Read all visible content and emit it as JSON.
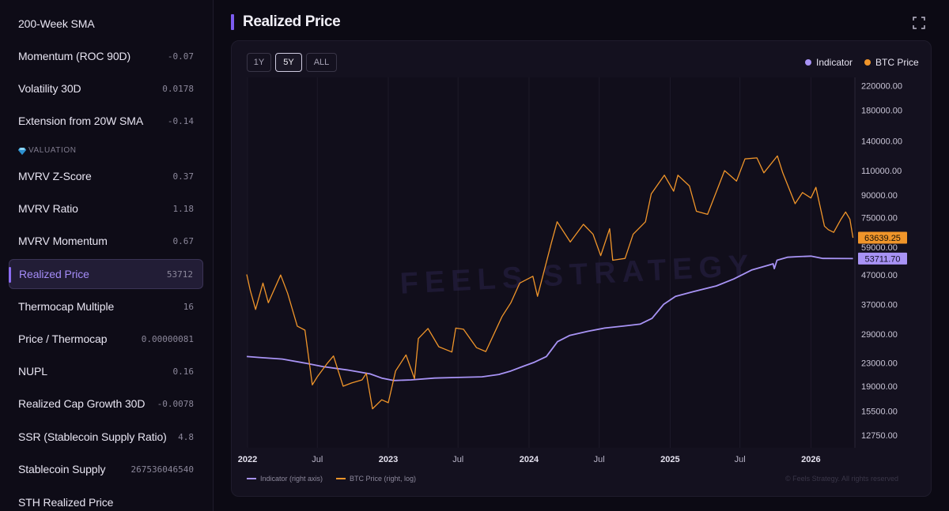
{
  "sidebar": {
    "items": [
      {
        "label": "200-Week SMA",
        "value": ""
      },
      {
        "label": "Momentum (ROC 90D)",
        "value": "-0.07"
      },
      {
        "label": "Volatility 30D",
        "value": "0.0178"
      },
      {
        "label": "Extension from 20W SMA",
        "value": "-0.14"
      },
      {
        "label": "MVRV Z-Score",
        "value": "0.37"
      },
      {
        "label": "MVRV Ratio",
        "value": "1.18"
      },
      {
        "label": "MVRV Momentum",
        "value": "0.67"
      },
      {
        "label": "Realized Price",
        "value": "53712"
      },
      {
        "label": "Thermocap Multiple",
        "value": "16"
      },
      {
        "label": "Price / Thermocap",
        "value": "0.00000081"
      },
      {
        "label": "NUPL",
        "value": "0.16"
      },
      {
        "label": "Realized Cap Growth 30D",
        "value": "-0.0078"
      },
      {
        "label": "SSR (Stablecoin Supply Ratio)",
        "value": "4.8"
      },
      {
        "label": "Stablecoin Supply",
        "value": "267536046540"
      },
      {
        "label": "STH Realized Price",
        "value": ""
      }
    ],
    "section_label": "VALUATION",
    "section_icon": "gem-icon"
  },
  "header": {
    "title": "Realized Price",
    "expand_icon": "expand-icon"
  },
  "range_buttons": {
    "options": [
      "1Y",
      "5Y",
      "ALL"
    ],
    "selected": "5Y"
  },
  "legend": {
    "indicator": "Indicator",
    "btc": "BTC Price"
  },
  "colors": {
    "indicator": "#a893f5",
    "btc": "#f0952a",
    "accent": "#7c5cf0"
  },
  "watermark": "FEELS STRATEGY",
  "copyright": "© Feels Strategy. All rights reserved",
  "chart_data": {
    "type": "line",
    "y_scale": "log",
    "ylim": [
      11500,
      235000
    ],
    "yticks": [
      220000,
      180000,
      140000,
      110000,
      90000,
      75000,
      59000,
      47000,
      37000,
      29000,
      23000,
      19000,
      15500,
      12750
    ],
    "ytick_labels": [
      "220000.00",
      "180000.00",
      "140000.00",
      "110000.00",
      "90000.00",
      "75000.00",
      "59000.00",
      "47000.00",
      "37000.00",
      "29000.00",
      "23000.00",
      "19000.00",
      "15500.00",
      "12750.00"
    ],
    "xlim": [
      "2021-12-30",
      "2026-04-25"
    ],
    "xticks": [
      "2022-01-01",
      "2022-07-01",
      "2023-01-01",
      "2023-07-01",
      "2024-01-01",
      "2024-07-01",
      "2025-01-01",
      "2025-07-01",
      "2026-01-01"
    ],
    "xtick_labels": [
      "2022",
      "Jul",
      "2023",
      "Jul",
      "2024",
      "Jul",
      "2025",
      "Jul",
      "2026"
    ],
    "bottom_legend": [
      "Indicator (right axis)",
      "BTC Price (right, log)"
    ],
    "series": [
      {
        "name": "Indicator",
        "last_label": "53711.70",
        "points": [
          [
            "2021-12-30",
            24200
          ],
          [
            "2022-02-01",
            24000
          ],
          [
            "2022-04-01",
            23700
          ],
          [
            "2022-06-01",
            22900
          ],
          [
            "2022-07-15",
            22300
          ],
          [
            "2022-09-15",
            21700
          ],
          [
            "2022-11-15",
            21000
          ],
          [
            "2022-12-15",
            20300
          ],
          [
            "2023-01-15",
            19900
          ],
          [
            "2023-03-01",
            20000
          ],
          [
            "2023-05-01",
            20300
          ],
          [
            "2023-07-01",
            20400
          ],
          [
            "2023-09-01",
            20500
          ],
          [
            "2023-10-15",
            20900
          ],
          [
            "2023-11-15",
            21500
          ],
          [
            "2023-12-15",
            22300
          ],
          [
            "2024-01-15",
            23100
          ],
          [
            "2024-02-15",
            24200
          ],
          [
            "2024-03-15",
            27300
          ],
          [
            "2024-04-15",
            28700
          ],
          [
            "2024-06-01",
            29700
          ],
          [
            "2024-07-15",
            30500
          ],
          [
            "2024-09-01",
            31000
          ],
          [
            "2024-10-15",
            31500
          ],
          [
            "2024-11-15",
            33000
          ],
          [
            "2024-12-15",
            37000
          ],
          [
            "2025-01-15",
            39500
          ],
          [
            "2025-03-01",
            41000
          ],
          [
            "2025-05-01",
            43000
          ],
          [
            "2025-06-15",
            45500
          ],
          [
            "2025-08-01",
            49000
          ],
          [
            "2025-09-15",
            51000
          ],
          [
            "2025-09-25",
            51500
          ],
          [
            "2025-09-28",
            49500
          ],
          [
            "2025-10-05",
            53000
          ],
          [
            "2025-11-01",
            54300
          ],
          [
            "2025-12-01",
            54600
          ],
          [
            "2026-01-01",
            54800
          ],
          [
            "2026-02-01",
            53800
          ],
          [
            "2026-04-20",
            53712
          ]
        ]
      },
      {
        "name": "BTC Price",
        "last_label": "63639.25",
        "points": [
          [
            "2021-12-30",
            47200
          ],
          [
            "2022-01-08",
            41500
          ],
          [
            "2022-01-22",
            35500
          ],
          [
            "2022-02-10",
            44000
          ],
          [
            "2022-02-24",
            37500
          ],
          [
            "2022-03-28",
            47000
          ],
          [
            "2022-04-15",
            40500
          ],
          [
            "2022-05-10",
            31000
          ],
          [
            "2022-05-30",
            30000
          ],
          [
            "2022-06-18",
            19200
          ],
          [
            "2022-07-01",
            20500
          ],
          [
            "2022-07-26",
            22800
          ],
          [
            "2022-08-12",
            24300
          ],
          [
            "2022-09-06",
            19000
          ],
          [
            "2022-09-28",
            19500
          ],
          [
            "2022-10-25",
            20000
          ],
          [
            "2022-11-05",
            21100
          ],
          [
            "2022-11-21",
            15800
          ],
          [
            "2022-12-15",
            17000
          ],
          [
            "2023-01-01",
            16600
          ],
          [
            "2023-01-20",
            21500
          ],
          [
            "2023-02-16",
            24500
          ],
          [
            "2023-03-10",
            20200
          ],
          [
            "2023-03-20",
            28000
          ],
          [
            "2023-04-14",
            30400
          ],
          [
            "2023-05-12",
            26200
          ],
          [
            "2023-06-15",
            25100
          ],
          [
            "2023-06-25",
            30500
          ],
          [
            "2023-07-15",
            30200
          ],
          [
            "2023-08-18",
            26000
          ],
          [
            "2023-09-11",
            25200
          ],
          [
            "2023-10-23",
            33500
          ],
          [
            "2023-11-15",
            37500
          ],
          [
            "2023-12-08",
            44000
          ],
          [
            "2024-01-11",
            46500
          ],
          [
            "2024-01-23",
            39500
          ],
          [
            "2024-02-28",
            61000
          ],
          [
            "2024-03-14",
            72500
          ],
          [
            "2024-04-17",
            61500
          ],
          [
            "2024-05-21",
            71000
          ],
          [
            "2024-06-15",
            65500
          ],
          [
            "2024-07-05",
            55000
          ],
          [
            "2024-07-28",
            68500
          ],
          [
            "2024-08-05",
            53000
          ],
          [
            "2024-09-06",
            53800
          ],
          [
            "2024-09-27",
            65500
          ],
          [
            "2024-10-29",
            72500
          ],
          [
            "2024-11-13",
            91000
          ],
          [
            "2024-12-17",
            106000
          ],
          [
            "2025-01-10",
            93000
          ],
          [
            "2025-01-21",
            106000
          ],
          [
            "2025-02-20",
            97000
          ],
          [
            "2025-03-10",
            79000
          ],
          [
            "2025-04-08",
            77000
          ],
          [
            "2025-05-22",
            110000
          ],
          [
            "2025-06-22",
            101000
          ],
          [
            "2025-07-14",
            121000
          ],
          [
            "2025-08-14",
            122000
          ],
          [
            "2025-09-01",
            108000
          ],
          [
            "2025-10-06",
            124000
          ],
          [
            "2025-10-20",
            108000
          ],
          [
            "2025-11-21",
            84000
          ],
          [
            "2025-12-10",
            92000
          ],
          [
            "2026-01-01",
            88000
          ],
          [
            "2026-01-14",
            96000
          ],
          [
            "2026-02-05",
            70000
          ],
          [
            "2026-02-15",
            68000
          ],
          [
            "2026-03-01",
            66500
          ],
          [
            "2026-03-20",
            74000
          ],
          [
            "2026-04-01",
            78500
          ],
          [
            "2026-04-12",
            74000
          ],
          [
            "2026-04-20",
            63639
          ]
        ]
      }
    ]
  }
}
